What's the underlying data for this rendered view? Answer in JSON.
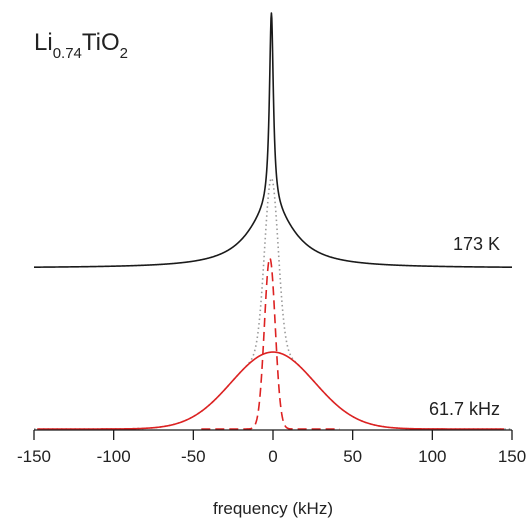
{
  "chart_data": {
    "type": "line",
    "title": {
      "base": "Li",
      "sub1": "0.74",
      "mid": "TiO",
      "sub2": "2"
    },
    "xlabel": "frequency (kHz)",
    "ylabel": "",
    "xlim": [
      -150,
      150
    ],
    "xticks": [
      -150,
      -100,
      -50,
      0,
      50,
      100,
      150
    ],
    "xtick_labels": [
      "-150",
      "-100",
      "-50",
      "0",
      "50",
      "100",
      "150"
    ],
    "grid": false,
    "annotations": [
      "173 K",
      "61.7 kHz"
    ],
    "colors": {
      "measured": "#1a1a1a",
      "fit": "#dd2222",
      "dotted": "#9a9a9a"
    },
    "series": [
      {
        "type": "measured",
        "center": -1,
        "baseline": 0,
        "peak_amplitude": 1.0,
        "narrow_fwhm": 3,
        "broad_fwhm": 35,
        "broad_fraction": 0.23,
        "x_range": [
          -150,
          150
        ]
      },
      {
        "type": "fit-broad",
        "center": 0,
        "fwhm": 61.7,
        "peak_amplitude": 0.27,
        "x_range": [
          -148,
          145
        ]
      },
      {
        "type": "fit-narrow",
        "center": -2,
        "fwhm": 8,
        "peak_amplitude": 0.6,
        "x_range": [
          -45,
          42
        ]
      },
      {
        "type": "sum",
        "center": -1,
        "peak_amplitude": 0.87,
        "x_range": [
          -150,
          150
        ]
      }
    ]
  }
}
